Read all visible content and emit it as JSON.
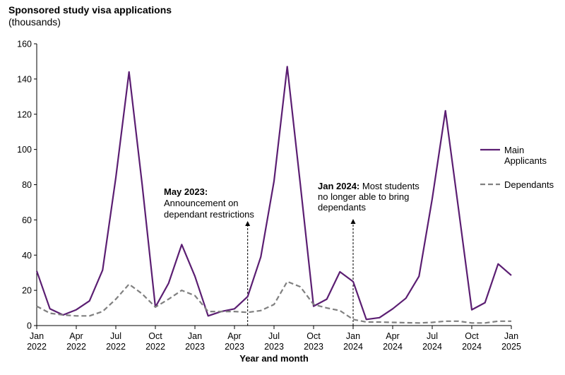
{
  "chart_data": {
    "type": "line",
    "title": "Sponsored study visa applications",
    "subtitle": "(thousands)",
    "xlabel": "Year and month",
    "ylabel": "",
    "ylim": [
      0,
      160
    ],
    "yticks": [
      "0",
      "20",
      "40",
      "60",
      "80",
      "100",
      "120",
      "140",
      "160"
    ],
    "grid": false,
    "legend": "right",
    "x": [
      "2022-01",
      "2022-02",
      "2022-03",
      "2022-04",
      "2022-05",
      "2022-06",
      "2022-07",
      "2022-08",
      "2022-09",
      "2022-10",
      "2022-11",
      "2022-12",
      "2023-01",
      "2023-02",
      "2023-03",
      "2023-04",
      "2023-05",
      "2023-06",
      "2023-07",
      "2023-08",
      "2023-09",
      "2023-10",
      "2023-11",
      "2023-12",
      "2024-01",
      "2024-02",
      "2024-03",
      "2024-04",
      "2024-05",
      "2024-06",
      "2024-07",
      "2024-08",
      "2024-09",
      "2024-10",
      "2024-11",
      "2024-12",
      "2025-01"
    ],
    "xticks": [
      {
        "month": "Jan",
        "year": "2022"
      },
      {
        "month": "Apr",
        "year": "2022"
      },
      {
        "month": "Jul",
        "year": "2022"
      },
      {
        "month": "Oct",
        "year": "2022"
      },
      {
        "month": "Jan",
        "year": "2023"
      },
      {
        "month": "Apr",
        "year": "2023"
      },
      {
        "month": "Jul",
        "year": "2023"
      },
      {
        "month": "Oct",
        "year": "2023"
      },
      {
        "month": "Jan",
        "year": "2024"
      },
      {
        "month": "Apr",
        "year": "2024"
      },
      {
        "month": "Jul",
        "year": "2024"
      },
      {
        "month": "Oct",
        "year": "2024"
      },
      {
        "month": "Jan",
        "year": "2025"
      }
    ],
    "series": [
      {
        "name": "Main Applicants",
        "color": "#5b1e72",
        "style": "solid",
        "values": [
          31,
          9.5,
          6,
          9,
          14,
          31.5,
          84,
          144,
          80,
          10.5,
          24,
          46,
          28,
          5.5,
          8,
          9.5,
          16.5,
          39,
          82,
          147,
          80,
          11,
          15,
          30.5,
          25,
          3.5,
          4.5,
          9.5,
          15.5,
          28,
          72,
          122,
          66,
          9,
          13,
          35,
          28.5
        ]
      },
      {
        "name": "Dependants",
        "color": "#808080",
        "style": "dashed",
        "values": [
          11,
          7,
          6,
          5.5,
          5.5,
          8,
          15,
          23.5,
          18,
          10.5,
          15,
          20,
          17,
          8,
          8,
          8,
          7.5,
          8.5,
          12,
          25,
          22,
          12,
          10,
          8.5,
          3.5,
          2,
          2,
          1.8,
          1.6,
          1.5,
          1.8,
          2.5,
          2.5,
          1.5,
          1.5,
          2.5,
          2.5
        ]
      }
    ],
    "annotations": [
      {
        "x": "2023-05",
        "bold": "May 2023:",
        "lines": [
          "Announcement on",
          "dependant restrictions"
        ]
      },
      {
        "x": "2024-01",
        "bold": "Jan 2024:",
        "lines": [
          "Most students",
          "no longer able to bring",
          "dependants"
        ]
      }
    ],
    "legend_labels": {
      "main_line1": "Main",
      "main_line2": "Applicants",
      "dependants": "Dependants"
    }
  }
}
